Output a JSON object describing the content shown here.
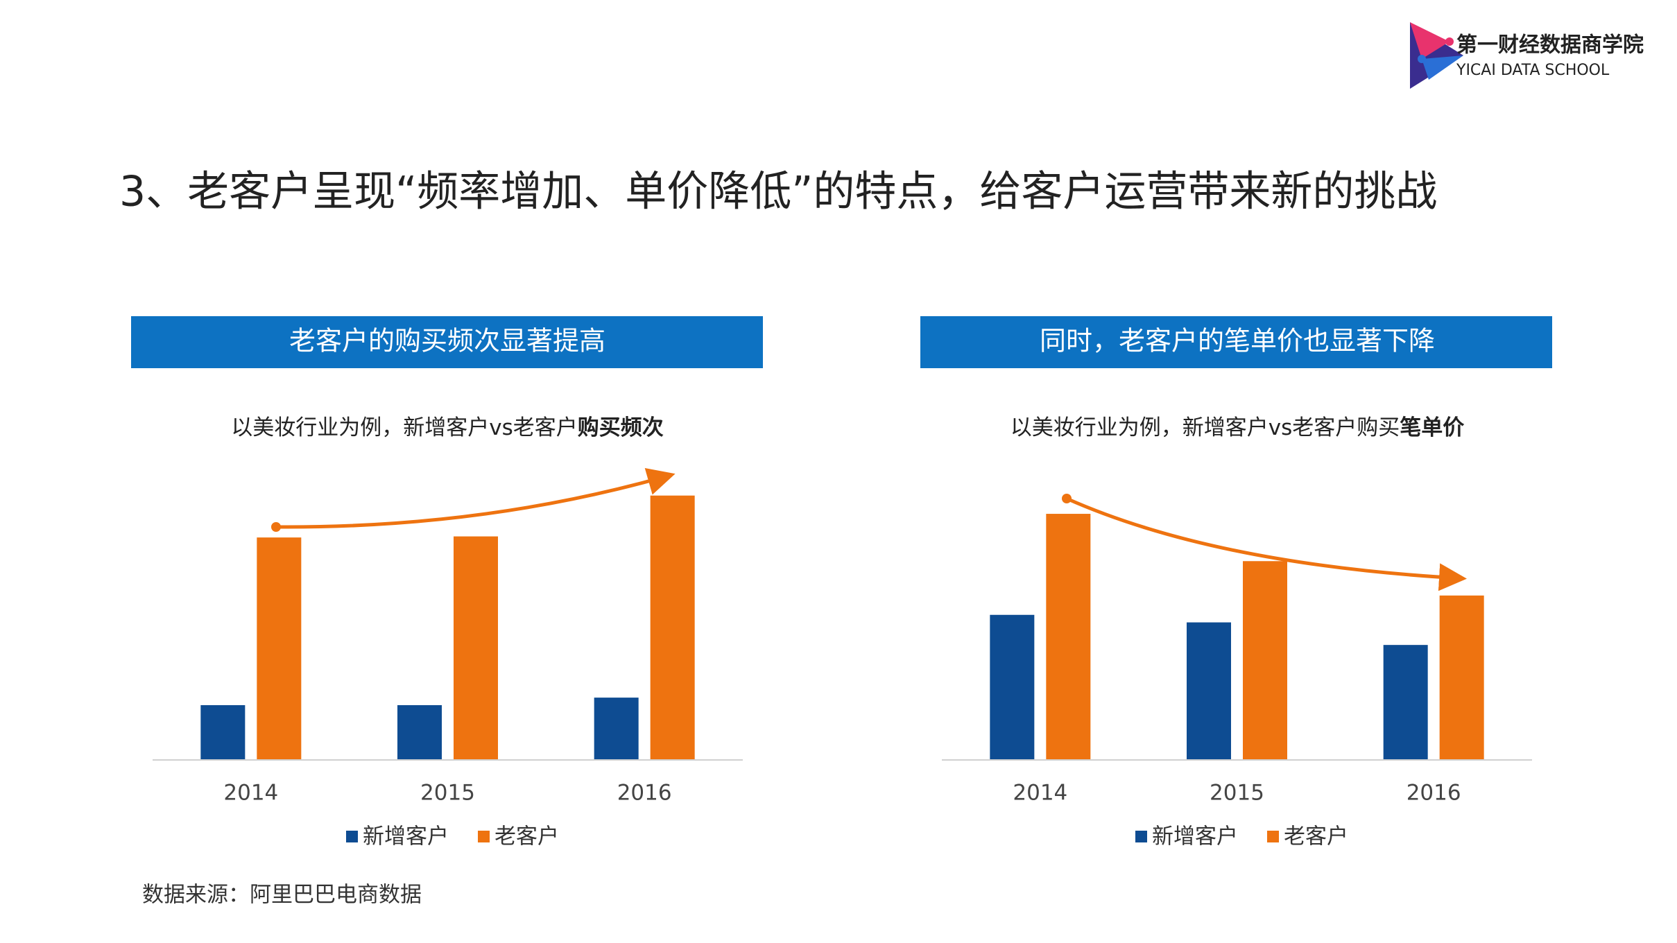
{
  "header": {
    "logo_cn": "第一财经数据商学院",
    "logo_en": "YICAI DATA SCHOOL"
  },
  "title": "3、老客户呈现“频率增加、单价降低”的特点，给客户运营带来新的挑战",
  "chart_data": [
    {
      "type": "bar",
      "banner": "老客户的购买频次显著提高",
      "subtitle": "以美妆行业为例，新增客户vs老客户",
      "subtitle_emphasis": "购买频次",
      "categories": [
        "2014",
        "2015",
        "2016"
      ],
      "series": [
        {
          "name": "新增客户",
          "color": "#0e4c92",
          "values": [
            51,
            51,
            58
          ]
        },
        {
          "name": "老客户",
          "color": "#ee7310",
          "values": [
            207,
            208,
            246
          ]
        }
      ],
      "ylim": [
        0,
        300
      ]
    },
    {
      "type": "bar",
      "banner": "同时，老客户的笔单价也显著下降",
      "subtitle": "以美妆行业为例，新增客户vs老客户购买",
      "subtitle_emphasis": "笔单价",
      "categories": [
        "2014",
        "2015",
        "2016"
      ],
      "series": [
        {
          "name": "新增客户",
          "color": "#0e4c92",
          "values": [
            135,
            128,
            107
          ]
        },
        {
          "name": "老客户",
          "color": "#ee7310",
          "values": [
            229,
            185,
            153
          ]
        }
      ],
      "ylim": [
        0,
        300
      ]
    }
  ],
  "source": "数据来源：阿里巴巴电商数据"
}
